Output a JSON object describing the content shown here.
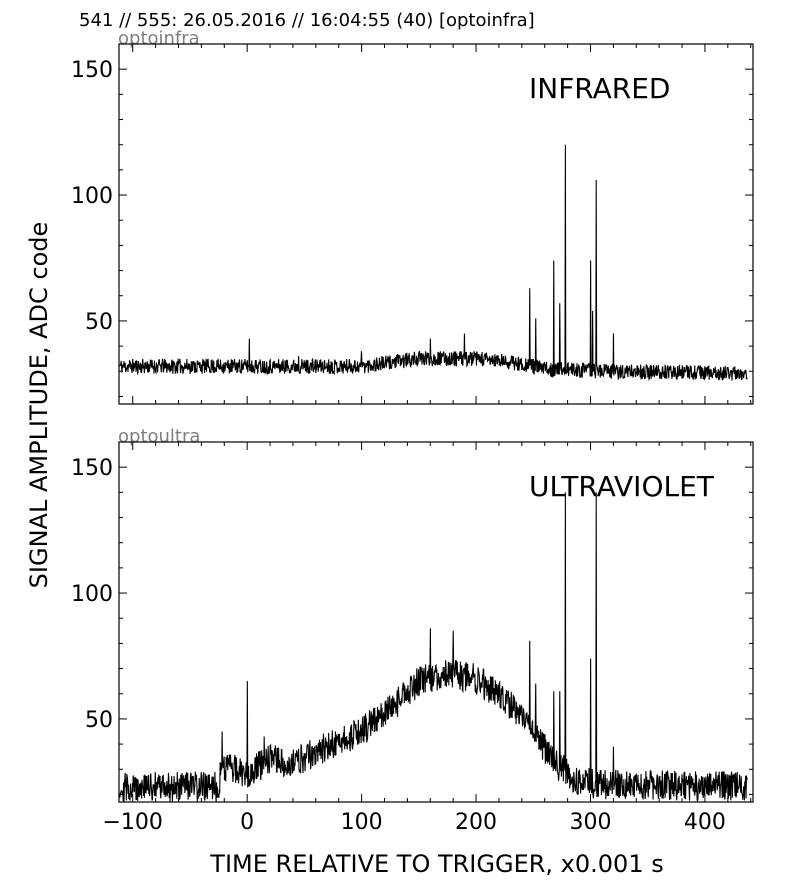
{
  "header": {
    "title": "541 // 555:   26.05.2016 // 16:04:55 (40)  [optoinfra]"
  },
  "axes": {
    "xlabel": "TIME RELATIVE TO TRIGGER,   x0.001 s",
    "ylabel": "SIGNAL AMPLITUDE,  ADC code"
  },
  "chart_data": [
    {
      "type": "line",
      "panel_label": "optoinfra",
      "annotation": "INFRARED",
      "xlim": [
        -112,
        442
      ],
      "ylim": [
        17,
        160
      ],
      "x_ticks": [
        -100,
        0,
        100,
        200,
        300,
        400
      ],
      "y_ticks": [
        50,
        100,
        150
      ],
      "y_tick_labels": [
        "50",
        "100",
        "150"
      ],
      "grid": false,
      "series": [
        {
          "color": "#000000",
          "noise_amplitude": 3,
          "baseline": [
            [
              -112,
              32
            ],
            [
              0,
              32
            ],
            [
              100,
              32
            ],
            [
              150,
              35
            ],
            [
              200,
              35
            ],
            [
              240,
              33
            ],
            [
              260,
              31
            ],
            [
              320,
              30
            ],
            [
              442,
              29
            ]
          ],
          "spikes": [
            [
              2,
              43
            ],
            [
              45,
              36
            ],
            [
              100,
              38
            ],
            [
              160,
              43
            ],
            [
              190,
              45
            ],
            [
              247,
              63
            ],
            [
              252,
              51
            ],
            [
              268,
              74
            ],
            [
              273,
              57
            ],
            [
              278,
              120
            ],
            [
              300,
              74
            ],
            [
              302,
              54
            ],
            [
              305,
              106
            ],
            [
              320,
              45
            ]
          ]
        }
      ]
    },
    {
      "type": "line",
      "panel_label": "optoultra",
      "annotation": "ULTRAVIOLET",
      "xlim": [
        -112,
        442
      ],
      "ylim": [
        17,
        160
      ],
      "x_ticks": [
        -100,
        0,
        100,
        200,
        300,
        400
      ],
      "x_tick_labels": [
        "−100",
        "0",
        "100",
        "200",
        "300",
        "400"
      ],
      "y_ticks": [
        50,
        100,
        150
      ],
      "y_tick_labels": [
        "50",
        "100",
        "150"
      ],
      "grid": false,
      "series": [
        {
          "color": "#000000",
          "noise_amplitude": 6,
          "baseline": [
            [
              -112,
              23
            ],
            [
              -25,
              23
            ],
            [
              -22,
              32
            ],
            [
              0,
              28
            ],
            [
              20,
              34
            ],
            [
              40,
              32
            ],
            [
              60,
              37
            ],
            [
              100,
              45
            ],
            [
              130,
              56
            ],
            [
              150,
              65
            ],
            [
              175,
              68
            ],
            [
              200,
              66
            ],
            [
              225,
              58
            ],
            [
              250,
              45
            ],
            [
              270,
              32
            ],
            [
              290,
              25
            ],
            [
              310,
              24
            ],
            [
              442,
              23
            ]
          ],
          "spikes": [
            [
              -22,
              45
            ],
            [
              0,
              65
            ],
            [
              15,
              43
            ],
            [
              160,
              86
            ],
            [
              180,
              85
            ],
            [
              247,
              81
            ],
            [
              252,
              64
            ],
            [
              268,
              61
            ],
            [
              273,
              61
            ],
            [
              278,
              140
            ],
            [
              300,
              74
            ],
            [
              305,
              140
            ],
            [
              320,
              39
            ]
          ]
        }
      ]
    }
  ]
}
